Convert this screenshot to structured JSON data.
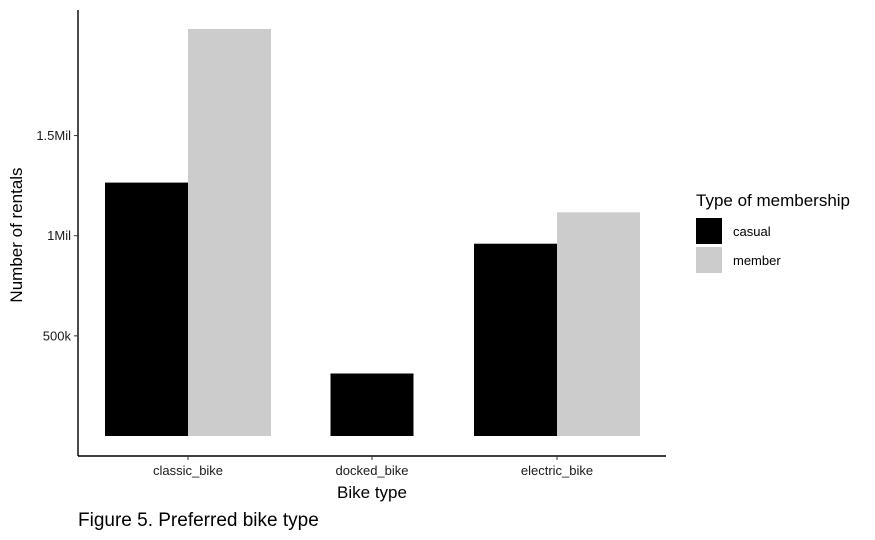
{
  "chart_data": {
    "type": "bar",
    "categories": [
      "classic_bike",
      "docked_bike",
      "electric_bike"
    ],
    "series": [
      {
        "name": "casual",
        "color": "#000000",
        "values": [
          1265000,
          312000,
          960000
        ]
      },
      {
        "name": "member",
        "color": "#cccccc",
        "values": [
          2032000,
          null,
          1117000
        ]
      }
    ],
    "xlabel": "Bike type",
    "ylabel": "Number of rentals",
    "ylim": [
      -90000,
      2110000
    ],
    "yticks": [
      {
        "value": 500000,
        "label": "500k"
      },
      {
        "value": 1000000,
        "label": "1Mil"
      },
      {
        "value": 1500000,
        "label": "1.5Mil"
      }
    ],
    "grid": false,
    "legend": {
      "title": "Type of membership",
      "position": "right"
    },
    "caption": "Figure 5. Preferred bike type"
  }
}
